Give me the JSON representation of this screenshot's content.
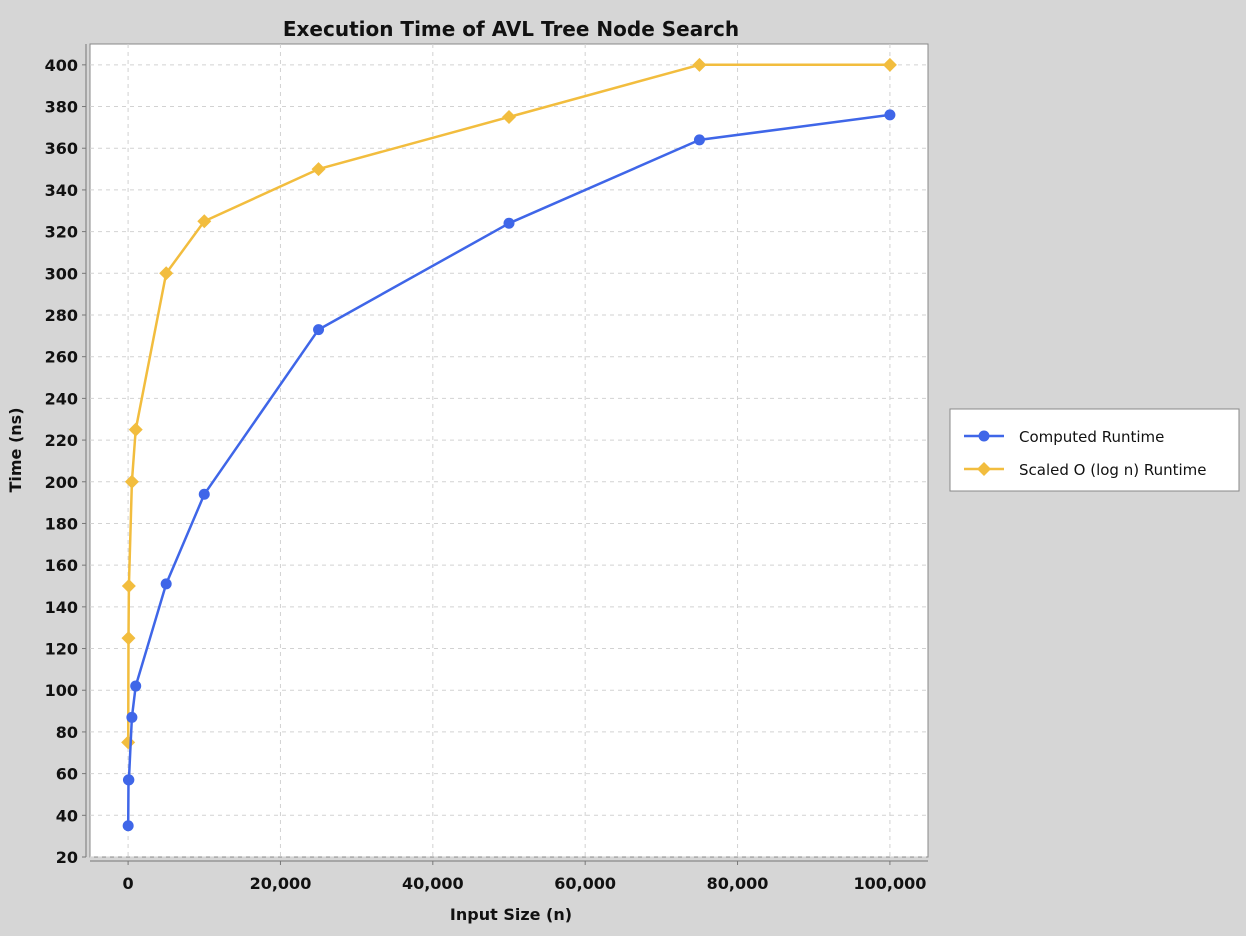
{
  "chart_data": {
    "type": "line",
    "title": "Execution Time of AVL Tree Node Search",
    "xlabel": "Input Size (n)",
    "ylabel": "Time (ns)",
    "xlim": [
      -5000,
      105000
    ],
    "ylim": [
      20,
      410
    ],
    "x_ticks": [
      0,
      20000,
      40000,
      60000,
      80000,
      100000
    ],
    "x_tick_labels": [
      "0",
      "20,000",
      "40,000",
      "60,000",
      "80,000",
      "100,000"
    ],
    "y_ticks": [
      20,
      40,
      60,
      80,
      100,
      120,
      140,
      160,
      180,
      200,
      220,
      240,
      260,
      280,
      300,
      320,
      340,
      360,
      380,
      400
    ],
    "y_tick_labels": [
      "20",
      "40",
      "60",
      "80",
      "100",
      "120",
      "140",
      "160",
      "180",
      "200",
      "220",
      "240",
      "260",
      "280",
      "300",
      "320",
      "340",
      "360",
      "380",
      "400"
    ],
    "grid": true,
    "legend_position": "right",
    "series": [
      {
        "name": "Computed Runtime",
        "color": "#3f66e8",
        "marker": "circle",
        "x": [
          10,
          50,
          100,
          500,
          1000,
          5000,
          10000,
          25000,
          50000,
          75000,
          100000
        ],
        "y": [
          35,
          57,
          57,
          87,
          102,
          151,
          194,
          273,
          324,
          364,
          376
        ]
      },
      {
        "name": "Scaled O (log n) Runtime",
        "color": "#f2bd3e",
        "marker": "diamond",
        "x": [
          10,
          50,
          100,
          500,
          1000,
          5000,
          10000,
          25000,
          50000,
          75000,
          100000
        ],
        "y": [
          75,
          125,
          150,
          200,
          225,
          300,
          325,
          350,
          375,
          400,
          400
        ]
      }
    ]
  }
}
